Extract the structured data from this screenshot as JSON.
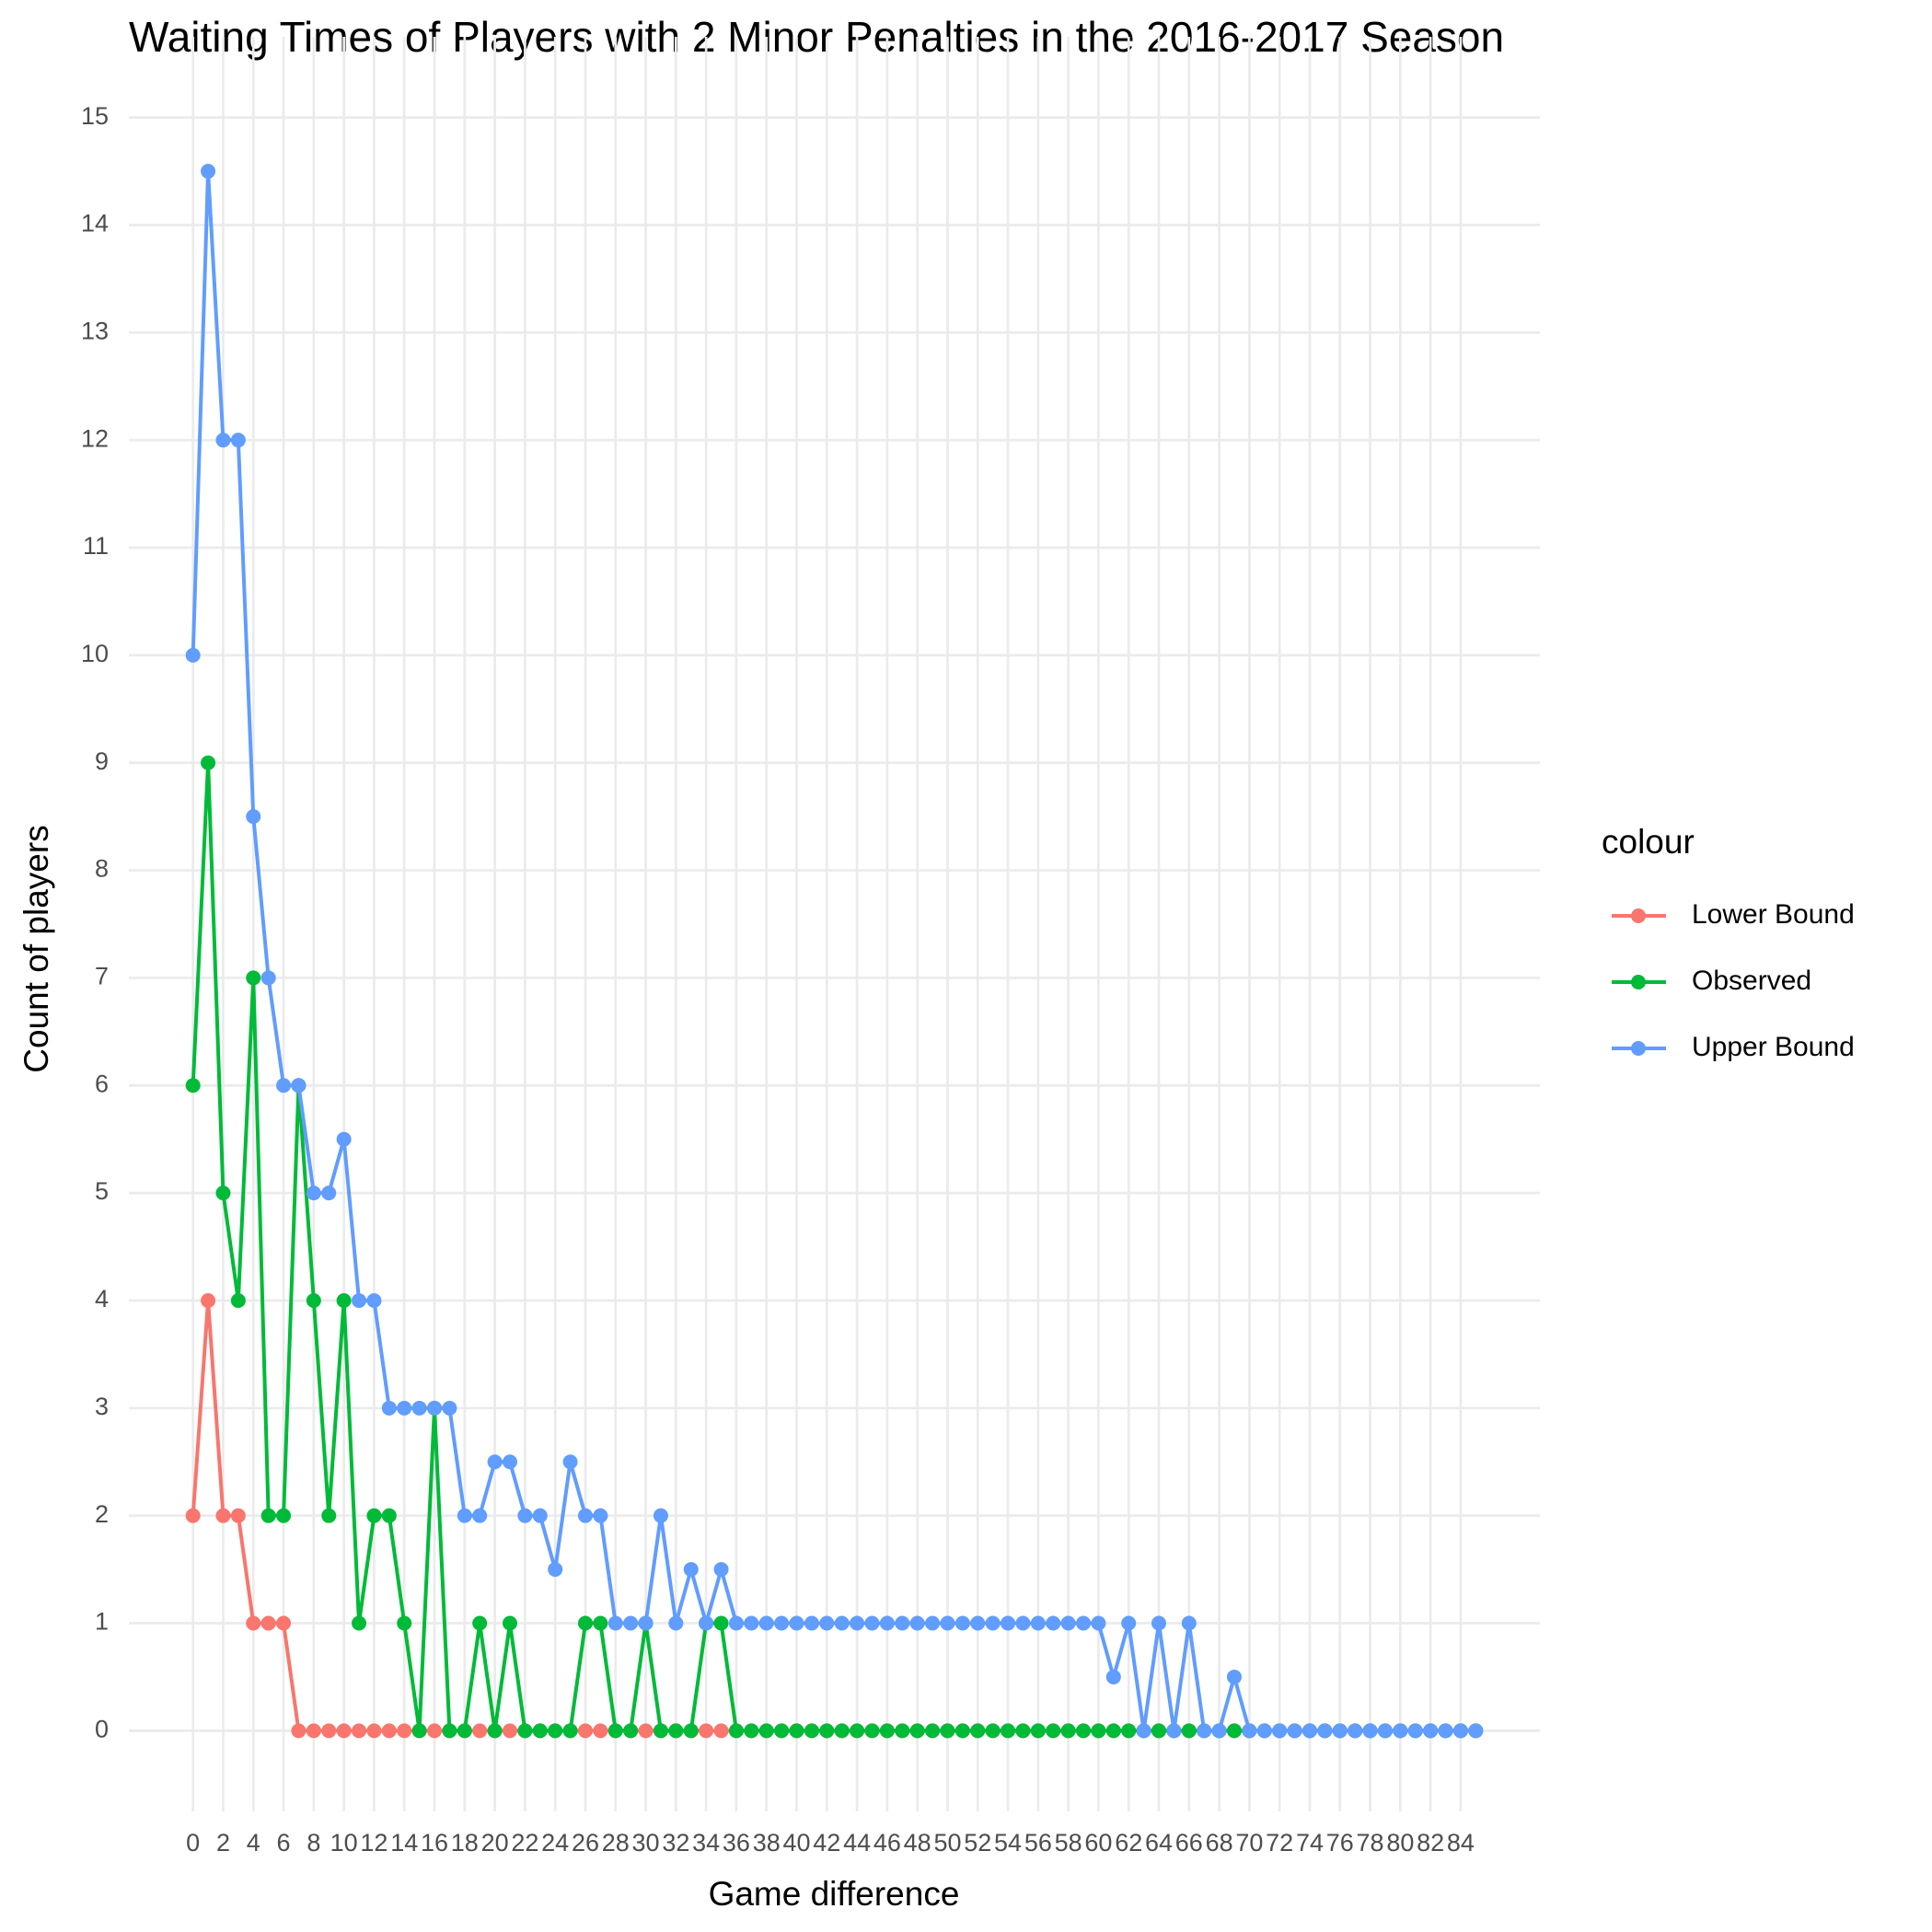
{
  "chart_data": {
    "type": "line",
    "title": "Waiting Times of Players with 2 Minor Penalties in the 2016-2017 Season",
    "x_label": "Game difference",
    "y_label": "Count of players",
    "legend_title": "colour",
    "legend_position": "right",
    "grid": true,
    "x": [
      0,
      1,
      2,
      3,
      4,
      5,
      6,
      7,
      8,
      9,
      10,
      11,
      12,
      13,
      14,
      15,
      16,
      17,
      18,
      19,
      20,
      21,
      22,
      23,
      24,
      25,
      26,
      27,
      28,
      29,
      30,
      31,
      32,
      33,
      34,
      35,
      36,
      37,
      38,
      39,
      40,
      41,
      42,
      43,
      44,
      45,
      46,
      47,
      48,
      49,
      50,
      51,
      52,
      53,
      54,
      55,
      56,
      57,
      58,
      59,
      60,
      61,
      62,
      63,
      64,
      65,
      66,
      67,
      68,
      69,
      70,
      71,
      72,
      73,
      74,
      75,
      76,
      77,
      78,
      79,
      80,
      81,
      82,
      83,
      84,
      85
    ],
    "series": [
      {
        "name": "Lower Bound",
        "color": "#F8766D",
        "values": [
          2,
          4,
          2,
          2,
          1,
          1,
          1,
          0,
          0,
          0,
          0,
          0,
          0,
          0,
          0,
          0,
          0,
          0,
          0,
          0,
          0,
          0,
          0,
          0,
          0,
          0,
          0,
          0,
          0,
          0,
          0,
          0,
          0,
          0,
          0,
          0,
          0,
          0,
          0,
          0,
          0,
          0,
          0,
          0,
          0,
          0,
          0,
          0,
          0,
          0,
          0,
          0,
          0,
          0,
          0,
          0,
          0,
          0,
          0,
          0,
          0,
          0,
          0,
          0,
          0,
          0,
          0,
          0,
          0,
          0,
          0,
          0,
          0,
          0,
          0,
          0,
          0,
          0,
          0,
          0,
          0,
          0,
          0,
          0,
          0,
          0
        ]
      },
      {
        "name": "Observed",
        "color": "#00BA38",
        "values": [
          6,
          9,
          5,
          4,
          7,
          2,
          2,
          6,
          4,
          2,
          4,
          1,
          2,
          2,
          1,
          0,
          3,
          0,
          0,
          1,
          0,
          1,
          0,
          0,
          0,
          0,
          1,
          1,
          0,
          0,
          1,
          0,
          0,
          0,
          1,
          1,
          0,
          0,
          0,
          0,
          0,
          0,
          0,
          0,
          0,
          0,
          0,
          0,
          0,
          0,
          0,
          0,
          0,
          0,
          0,
          0,
          0,
          0,
          0,
          0,
          0,
          0,
          0,
          0,
          0,
          0,
          0,
          0,
          0,
          0,
          0,
          0,
          0,
          0,
          0,
          0,
          0,
          0,
          0,
          0,
          0,
          0,
          0,
          0,
          0,
          0
        ]
      },
      {
        "name": "Upper Bound",
        "color": "#619CFF",
        "values": [
          10,
          14.5,
          12,
          12,
          8.5,
          7,
          6,
          6,
          5,
          5,
          5.5,
          4,
          4,
          3,
          3,
          3,
          3,
          3,
          2,
          2,
          2.5,
          2.5,
          2,
          2,
          1.5,
          2.5,
          2,
          2,
          1,
          1,
          1,
          2,
          1,
          1.5,
          1,
          1.5,
          1,
          1,
          1,
          1,
          1,
          1,
          1,
          1,
          1,
          1,
          1,
          1,
          1,
          1,
          1,
          1,
          1,
          1,
          1,
          1,
          1,
          1,
          1,
          1,
          1,
          0.5,
          1,
          0,
          1,
          0,
          1,
          0,
          0,
          0.5,
          0,
          0,
          0,
          0,
          0,
          0,
          0,
          0,
          0,
          0,
          0,
          0,
          0,
          0,
          0,
          0
        ]
      }
    ],
    "xlim": [
      -4.25,
      89.25
    ],
    "xticks": [
      0,
      2,
      4,
      6,
      8,
      10,
      12,
      14,
      16,
      18,
      20,
      22,
      24,
      26,
      28,
      30,
      32,
      34,
      36,
      38,
      40,
      42,
      44,
      46,
      48,
      50,
      52,
      54,
      56,
      58,
      60,
      62,
      64,
      66,
      68,
      70,
      72,
      74,
      76,
      78,
      80,
      82,
      84
    ],
    "ylim": [
      -0.75,
      15.75
    ],
    "yticks": [
      0,
      1,
      2,
      3,
      4,
      5,
      6,
      7,
      8,
      9,
      10,
      11,
      12,
      13,
      14,
      15
    ]
  }
}
